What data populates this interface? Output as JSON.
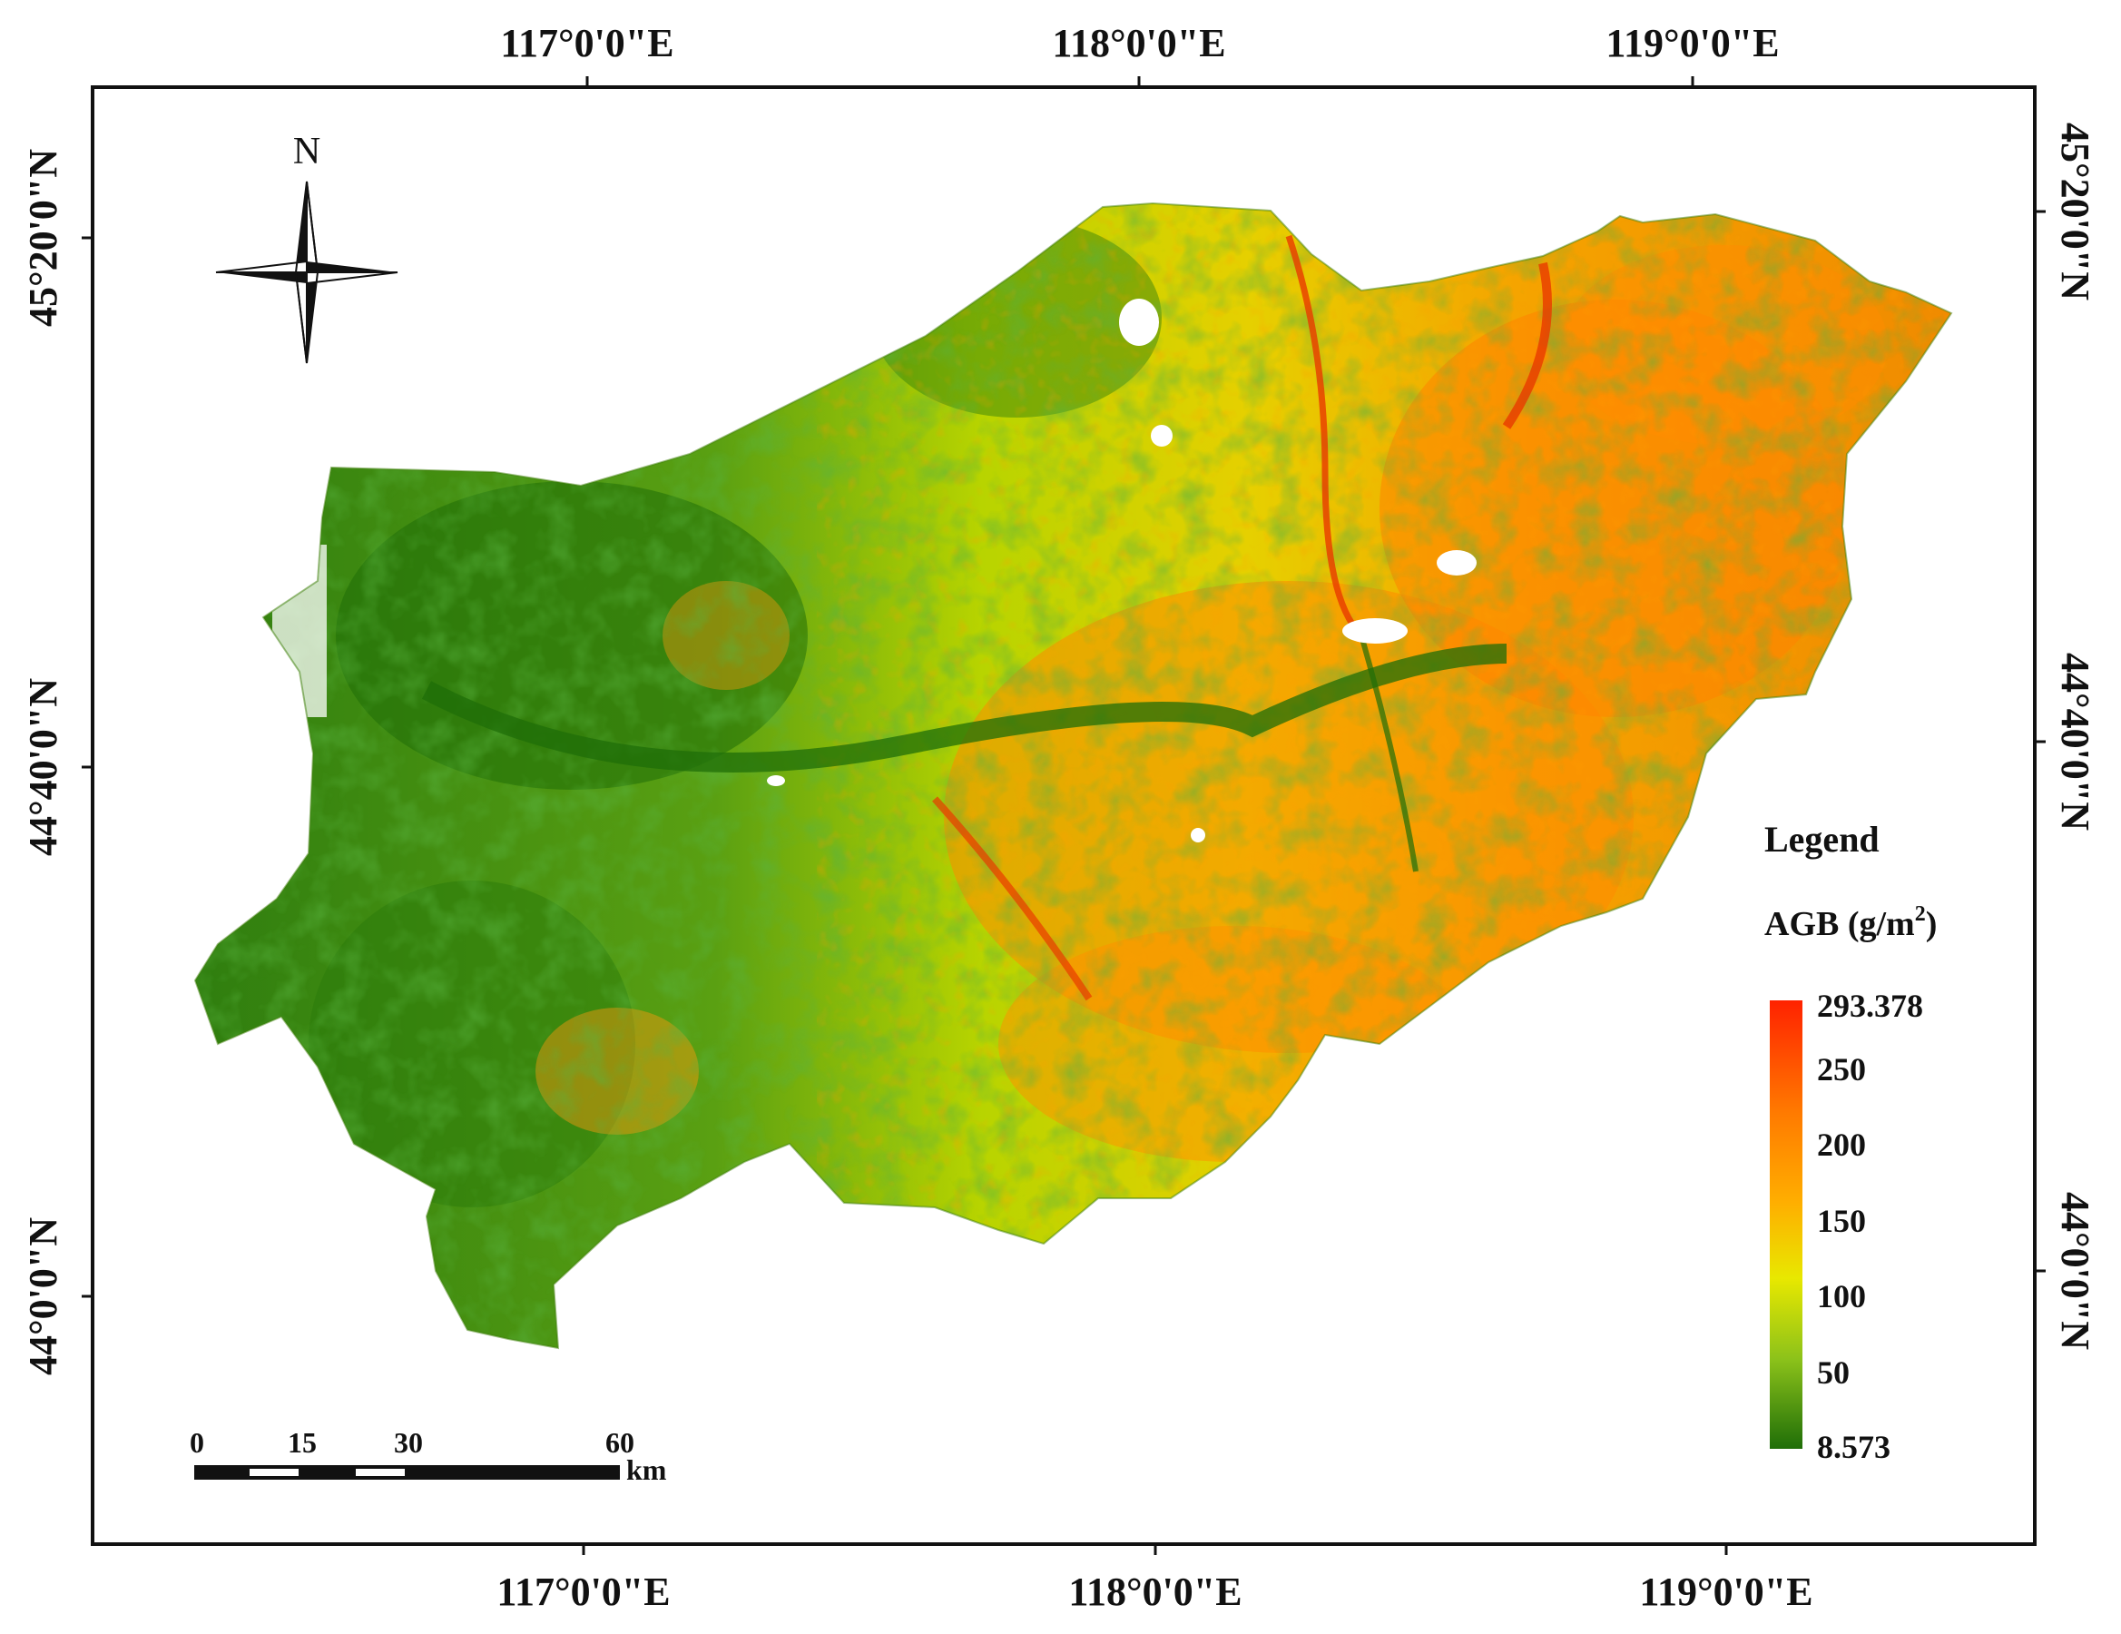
{
  "axes": {
    "top_labels": [
      "117°0'0\"E",
      "118°0'0\"E",
      "119°0'0\"E"
    ],
    "bottom_labels": [
      "117°0'0\"E",
      "118°0'0\"E",
      "119°0'0\"E"
    ],
    "left_labels": [
      "45°20'0\"N",
      "44°40'0\"N",
      "44°0'0\"N"
    ],
    "right_labels": [
      "45°20'0\"N",
      "44°40'0\"N",
      "44°0'0\"N"
    ]
  },
  "north_arrow": {
    "label": "N"
  },
  "legend": {
    "title": "Legend",
    "quantity": "AGB (g/m",
    "unit_superscript": "2",
    "quantity_close": ")",
    "max_label": "293.378",
    "min_label": "8.573",
    "ticks": [
      "250",
      "200",
      "150",
      "100",
      "50"
    ],
    "colors": [
      "#ff2200",
      "#ff7a00",
      "#ffae00",
      "#e8e800",
      "#8cc21a",
      "#1f6e08"
    ]
  },
  "scale_bar": {
    "labels": [
      "0",
      "15",
      "30",
      "60"
    ],
    "unit": "km"
  }
}
